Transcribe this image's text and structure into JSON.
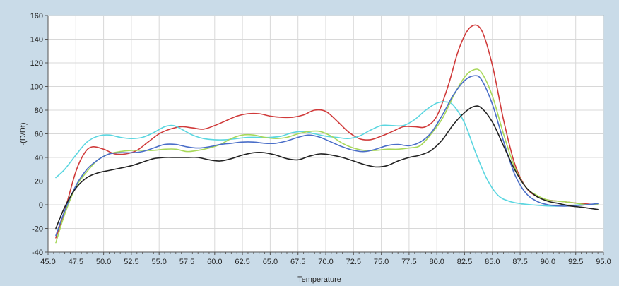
{
  "chart_data": {
    "type": "line",
    "title": "",
    "xlabel": "Temperature",
    "ylabel": "-(D/Dt)",
    "xlim": [
      45.0,
      95.0
    ],
    "ylim": [
      -40,
      160
    ],
    "x_ticks": [
      45.0,
      47.5,
      50.0,
      52.5,
      55.0,
      57.5,
      60.0,
      62.5,
      65.0,
      67.5,
      70.0,
      72.5,
      75.0,
      77.5,
      80.0,
      82.5,
      85.0,
      87.5,
      90.0,
      92.5,
      95.0
    ],
    "x_tick_labels": [
      "45.0",
      "47.5",
      "50.0",
      "52.5",
      "55.0",
      "57.5",
      "60.0",
      "62.5",
      "65.0",
      "67.5",
      "70.0",
      "72.5",
      "75.0",
      "77.5",
      "80.0",
      "82.5",
      "85.0",
      "87.5",
      "90.0",
      "92.5",
      "95.0"
    ],
    "y_ticks": [
      -40,
      -20,
      0,
      20,
      40,
      60,
      80,
      100,
      120,
      140,
      160
    ],
    "y_tick_labels": [
      "-40",
      "-20",
      "0",
      "20",
      "40",
      "60",
      "80",
      "100",
      "120",
      "140",
      "160"
    ],
    "grid": true,
    "background": "#ffffff",
    "series": [
      {
        "color": "#d03a3a",
        "points": [
          [
            45.7,
            -28
          ],
          [
            46.5,
            -5
          ],
          [
            47.5,
            28
          ],
          [
            48.3,
            44
          ],
          [
            49.0,
            49
          ],
          [
            50.0,
            47
          ],
          [
            51.0,
            43
          ],
          [
            52.0,
            43
          ],
          [
            53.0,
            46
          ],
          [
            54.0,
            53
          ],
          [
            55.0,
            60
          ],
          [
            56.0,
            64
          ],
          [
            57.0,
            66
          ],
          [
            58.0,
            65
          ],
          [
            59.0,
            64
          ],
          [
            60.0,
            67
          ],
          [
            61.0,
            71
          ],
          [
            62.0,
            75
          ],
          [
            63.0,
            77
          ],
          [
            64.0,
            77
          ],
          [
            65.0,
            75
          ],
          [
            66.0,
            74
          ],
          [
            67.0,
            74
          ],
          [
            68.0,
            76
          ],
          [
            69.0,
            80
          ],
          [
            70.0,
            79
          ],
          [
            71.0,
            71
          ],
          [
            72.0,
            62
          ],
          [
            73.0,
            56
          ],
          [
            74.0,
            55
          ],
          [
            75.0,
            58
          ],
          [
            76.0,
            62
          ],
          [
            77.0,
            66
          ],
          [
            78.0,
            66
          ],
          [
            79.0,
            66
          ],
          [
            80.0,
            75
          ],
          [
            81.0,
            100
          ],
          [
            82.0,
            132
          ],
          [
            83.0,
            150
          ],
          [
            84.0,
            148
          ],
          [
            85.0,
            118
          ],
          [
            86.0,
            72
          ],
          [
            87.0,
            35
          ],
          [
            88.0,
            15
          ],
          [
            89.0,
            7
          ],
          [
            90.0,
            4
          ],
          [
            91.0,
            3
          ],
          [
            92.0,
            2
          ],
          [
            93.0,
            1
          ],
          [
            94.5,
            0
          ]
        ]
      },
      {
        "color": "#5ad6e0",
        "points": [
          [
            45.7,
            23
          ],
          [
            46.5,
            30
          ],
          [
            47.5,
            42
          ],
          [
            48.5,
            53
          ],
          [
            49.5,
            58
          ],
          [
            50.5,
            59
          ],
          [
            51.5,
            57
          ],
          [
            52.5,
            56
          ],
          [
            53.5,
            57
          ],
          [
            54.5,
            61
          ],
          [
            55.5,
            66
          ],
          [
            56.3,
            67
          ],
          [
            57.0,
            64
          ],
          [
            58.0,
            59
          ],
          [
            59.0,
            56
          ],
          [
            60.0,
            55
          ],
          [
            61.0,
            55
          ],
          [
            62.0,
            56
          ],
          [
            63.0,
            57
          ],
          [
            64.0,
            57
          ],
          [
            65.0,
            57
          ],
          [
            66.0,
            58
          ],
          [
            67.0,
            61
          ],
          [
            68.0,
            62
          ],
          [
            69.0,
            60
          ],
          [
            70.0,
            58
          ],
          [
            71.0,
            57
          ],
          [
            72.0,
            56
          ],
          [
            73.0,
            58
          ],
          [
            74.0,
            63
          ],
          [
            75.0,
            67
          ],
          [
            76.0,
            67
          ],
          [
            77.0,
            67
          ],
          [
            78.0,
            72
          ],
          [
            79.0,
            80
          ],
          [
            80.0,
            86
          ],
          [
            80.8,
            87
          ],
          [
            81.5,
            84
          ],
          [
            82.5,
            69
          ],
          [
            83.5,
            44
          ],
          [
            84.5,
            22
          ],
          [
            85.5,
            8
          ],
          [
            86.5,
            3
          ],
          [
            87.5,
            1
          ],
          [
            88.5,
            0
          ],
          [
            90.0,
            -1
          ],
          [
            91.5,
            -1
          ],
          [
            93.0,
            0
          ],
          [
            94.5,
            0
          ]
        ]
      },
      {
        "color": "#a8d85a",
        "points": [
          [
            45.7,
            -32
          ],
          [
            46.5,
            -8
          ],
          [
            47.5,
            15
          ],
          [
            48.5,
            28
          ],
          [
            49.5,
            38
          ],
          [
            50.5,
            43
          ],
          [
            51.5,
            45
          ],
          [
            52.5,
            46
          ],
          [
            53.5,
            46
          ],
          [
            54.5,
            46
          ],
          [
            55.5,
            47
          ],
          [
            56.5,
            47
          ],
          [
            57.5,
            45
          ],
          [
            58.5,
            46
          ],
          [
            59.5,
            48
          ],
          [
            60.5,
            51
          ],
          [
            61.5,
            56
          ],
          [
            62.5,
            59
          ],
          [
            63.5,
            59
          ],
          [
            64.5,
            57
          ],
          [
            65.5,
            56
          ],
          [
            66.5,
            57
          ],
          [
            67.5,
            60
          ],
          [
            68.5,
            62
          ],
          [
            69.5,
            62
          ],
          [
            70.5,
            58
          ],
          [
            71.5,
            52
          ],
          [
            72.5,
            48
          ],
          [
            73.5,
            46
          ],
          [
            74.5,
            46
          ],
          [
            75.5,
            47
          ],
          [
            76.5,
            47
          ],
          [
            77.5,
            48
          ],
          [
            78.5,
            50
          ],
          [
            79.5,
            60
          ],
          [
            80.5,
            73
          ],
          [
            81.5,
            92
          ],
          [
            82.5,
            108
          ],
          [
            83.3,
            114
          ],
          [
            84.0,
            112
          ],
          [
            85.0,
            92
          ],
          [
            86.0,
            60
          ],
          [
            87.0,
            32
          ],
          [
            88.0,
            15
          ],
          [
            89.0,
            8
          ],
          [
            90.0,
            4
          ],
          [
            91.0,
            3
          ],
          [
            92.0,
            2
          ],
          [
            93.5,
            0
          ],
          [
            94.5,
            0
          ]
        ]
      },
      {
        "color": "#4a6ec8",
        "points": [
          [
            45.7,
            -26
          ],
          [
            46.5,
            -5
          ],
          [
            47.5,
            16
          ],
          [
            48.5,
            30
          ],
          [
            49.5,
            38
          ],
          [
            50.5,
            43
          ],
          [
            51.5,
            44
          ],
          [
            52.5,
            44
          ],
          [
            53.5,
            45
          ],
          [
            54.5,
            48
          ],
          [
            55.5,
            51
          ],
          [
            56.5,
            51
          ],
          [
            57.5,
            49
          ],
          [
            58.5,
            48
          ],
          [
            59.5,
            49
          ],
          [
            60.5,
            51
          ],
          [
            61.5,
            52
          ],
          [
            62.5,
            53
          ],
          [
            63.5,
            53
          ],
          [
            64.5,
            52
          ],
          [
            65.5,
            52
          ],
          [
            66.5,
            54
          ],
          [
            67.5,
            57
          ],
          [
            68.5,
            59
          ],
          [
            69.5,
            57
          ],
          [
            70.5,
            53
          ],
          [
            71.5,
            49
          ],
          [
            72.5,
            46
          ],
          [
            73.5,
            45
          ],
          [
            74.5,
            47
          ],
          [
            75.5,
            50
          ],
          [
            76.5,
            51
          ],
          [
            77.5,
            50
          ],
          [
            78.5,
            53
          ],
          [
            79.5,
            61
          ],
          [
            80.5,
            76
          ],
          [
            81.5,
            93
          ],
          [
            82.5,
            105
          ],
          [
            83.3,
            109
          ],
          [
            84.0,
            106
          ],
          [
            85.0,
            85
          ],
          [
            86.0,
            54
          ],
          [
            87.0,
            26
          ],
          [
            88.0,
            10
          ],
          [
            89.0,
            3
          ],
          [
            90.0,
            0
          ],
          [
            91.0,
            -1
          ],
          [
            92.0,
            -1
          ],
          [
            93.5,
            0
          ],
          [
            94.5,
            1
          ]
        ]
      },
      {
        "color": "#222222",
        "points": [
          [
            45.7,
            -20
          ],
          [
            46.5,
            -2
          ],
          [
            47.5,
            14
          ],
          [
            48.5,
            23
          ],
          [
            49.5,
            27
          ],
          [
            50.5,
            29
          ],
          [
            51.5,
            31
          ],
          [
            52.5,
            33
          ],
          [
            53.5,
            36
          ],
          [
            54.5,
            39
          ],
          [
            55.5,
            40
          ],
          [
            56.5,
            40
          ],
          [
            57.5,
            40
          ],
          [
            58.5,
            40
          ],
          [
            59.5,
            38
          ],
          [
            60.5,
            37
          ],
          [
            61.5,
            39
          ],
          [
            62.5,
            42
          ],
          [
            63.5,
            44
          ],
          [
            64.5,
            44
          ],
          [
            65.5,
            42
          ],
          [
            66.5,
            39
          ],
          [
            67.5,
            38
          ],
          [
            68.5,
            41
          ],
          [
            69.5,
            43
          ],
          [
            70.5,
            42
          ],
          [
            71.5,
            40
          ],
          [
            72.5,
            37
          ],
          [
            73.5,
            34
          ],
          [
            74.5,
            32
          ],
          [
            75.5,
            33
          ],
          [
            76.5,
            37
          ],
          [
            77.5,
            40
          ],
          [
            78.5,
            42
          ],
          [
            79.5,
            46
          ],
          [
            80.5,
            55
          ],
          [
            81.5,
            68
          ],
          [
            82.5,
            78
          ],
          [
            83.3,
            83
          ],
          [
            84.0,
            82
          ],
          [
            85.0,
            70
          ],
          [
            86.0,
            50
          ],
          [
            87.0,
            30
          ],
          [
            88.0,
            15
          ],
          [
            89.0,
            7
          ],
          [
            90.0,
            3
          ],
          [
            91.0,
            1
          ],
          [
            92.0,
            -1
          ],
          [
            93.0,
            -2
          ],
          [
            94.5,
            -4
          ]
        ]
      }
    ]
  }
}
